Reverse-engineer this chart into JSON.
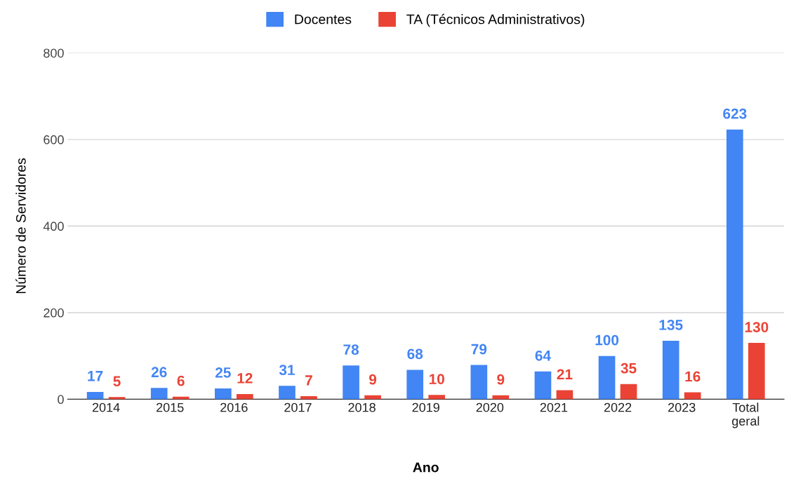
{
  "chart_data": {
    "type": "bar",
    "xlabel": "Ano",
    "ylabel": "Número de Servidores",
    "categories": [
      "2014",
      "2015",
      "2016",
      "2017",
      "2018",
      "2019",
      "2020",
      "2021",
      "2022",
      "2023",
      "Total\ngeral"
    ],
    "series": [
      {
        "name": "Docentes",
        "color": "#4285f4",
        "values": [
          17,
          26,
          25,
          31,
          78,
          68,
          79,
          64,
          100,
          135,
          623
        ]
      },
      {
        "name": "TA (Técnicos Administrativos)",
        "color": "#ea4335",
        "values": [
          5,
          6,
          12,
          7,
          9,
          10,
          9,
          21,
          35,
          16,
          130
        ]
      }
    ],
    "ylim": [
      0,
      800
    ],
    "yticks": [
      0,
      200,
      400,
      600,
      800
    ],
    "grid": "y",
    "legend": "top",
    "data_labels": true
  }
}
